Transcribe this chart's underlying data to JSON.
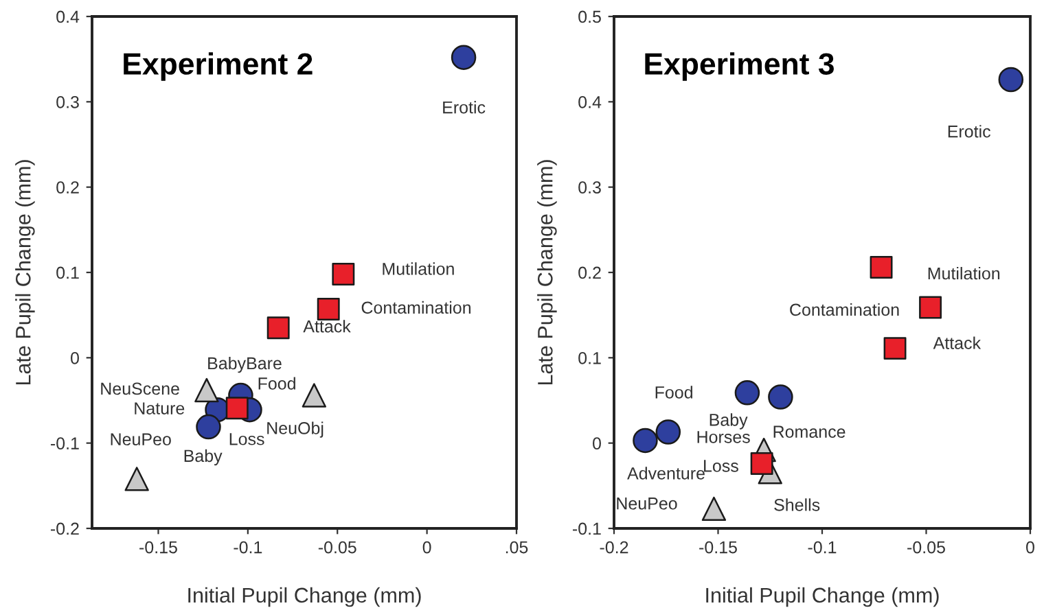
{
  "chart_data": [
    {
      "type": "scatter",
      "title": "Experiment 2",
      "xlabel": "Initial Pupil Change (mm)",
      "ylabel": "Late Pupil Change (mm)",
      "xlim": [
        -0.187,
        0.05
      ],
      "ylim": [
        -0.2,
        0.4
      ],
      "xticks": [
        -0.15,
        -0.1,
        -0.05,
        0,
        {
          "value": 0.05,
          "label": ".05"
        }
      ],
      "yticks": [
        -0.2,
        -0.1,
        0,
        0.1,
        0.2,
        0.3,
        0.4
      ],
      "series": [
        {
          "color": "#2e3f9e",
          "marker": "circle",
          "x": [
            0.0205,
            -0.104,
            -0.099,
            -0.117,
            -0.122
          ],
          "values": [
            0.352,
            -0.044,
            -0.061,
            -0.061,
            -0.081
          ]
        },
        {
          "color": "#e8202a",
          "marker": "square",
          "x": [
            -0.0467,
            -0.055,
            -0.083,
            -0.106
          ],
          "values": [
            0.098,
            0.057,
            0.035,
            -0.059
          ]
        },
        {
          "color": "#c8c8c8",
          "marker": "triangle",
          "x": [
            -0.123,
            -0.063,
            -0.162
          ],
          "values": [
            -0.038,
            -0.044,
            -0.142
          ]
        }
      ],
      "annotations": [
        {
          "text": "Erotic",
          "x": 0.0205,
          "y": 0.352
        },
        {
          "text": "Mutilation",
          "x": -0.0467,
          "y": 0.098
        },
        {
          "text": "Contamination",
          "x": -0.055,
          "y": 0.057
        },
        {
          "text": "Attack",
          "x": -0.083,
          "y": 0.035
        },
        {
          "text": "BabyBare",
          "x": -0.104,
          "y": -0.044
        },
        {
          "text": "Food",
          "x": -0.099,
          "y": -0.061
        },
        {
          "text": "Nature",
          "x": -0.117,
          "y": -0.061
        },
        {
          "text": "Loss",
          "x": -0.106,
          "y": -0.059
        },
        {
          "text": "Baby",
          "x": -0.122,
          "y": -0.081
        },
        {
          "text": "NeuScene",
          "x": -0.123,
          "y": -0.038
        },
        {
          "text": "NeuObj",
          "x": -0.063,
          "y": -0.044
        },
        {
          "text": "NeuPeo",
          "x": -0.162,
          "y": -0.142
        }
      ]
    },
    {
      "type": "scatter",
      "title": "Experiment 3",
      "xlabel": "Initial Pupil Change (mm)",
      "ylabel": "Late Pupil Change (mm)",
      "xlim": [
        -0.2,
        0
      ],
      "ylim": [
        -0.1,
        0.5
      ],
      "xticks": [
        -0.2,
        -0.15,
        -0.1,
        -0.05,
        0
      ],
      "yticks": [
        -0.1,
        0,
        0.1,
        0.2,
        0.3,
        0.4,
        0.5
      ],
      "series": [
        {
          "color": "#2e3f9e",
          "marker": "circle",
          "x": [
            -0.0093,
            -0.136,
            -0.12,
            -0.174,
            -0.185
          ],
          "values": [
            0.426,
            0.059,
            0.054,
            0.013,
            0.003
          ]
        },
        {
          "color": "#e8202a",
          "marker": "square",
          "x": [
            -0.0716,
            -0.048,
            -0.065,
            -0.129
          ],
          "values": [
            0.206,
            0.159,
            0.111,
            -0.024
          ]
        },
        {
          "color": "#c8c8c8",
          "marker": "triangle",
          "x": [
            -0.128,
            -0.125,
            -0.152
          ],
          "values": [
            -0.008,
            -0.034,
            -0.077
          ]
        }
      ],
      "annotations": [
        {
          "text": "Erotic",
          "x": -0.0093,
          "y": 0.426
        },
        {
          "text": "Mutilation",
          "x": -0.0716,
          "y": 0.206
        },
        {
          "text": "Contamination",
          "x": -0.048,
          "y": 0.159
        },
        {
          "text": "Attack",
          "x": -0.065,
          "y": 0.111
        },
        {
          "text": "Baby",
          "x": -0.136,
          "y": 0.059
        },
        {
          "text": "Romance",
          "x": -0.12,
          "y": 0.054
        },
        {
          "text": "Food",
          "x": -0.174,
          "y": 0.013
        },
        {
          "text": "Adventure",
          "x": -0.185,
          "y": 0.003
        },
        {
          "text": "Horses",
          "x": -0.128,
          "y": -0.008
        },
        {
          "text": "Loss",
          "x": -0.129,
          "y": -0.024
        },
        {
          "text": "Shells",
          "x": -0.125,
          "y": -0.034
        },
        {
          "text": "NeuPeo",
          "x": -0.152,
          "y": -0.077
        }
      ]
    }
  ]
}
